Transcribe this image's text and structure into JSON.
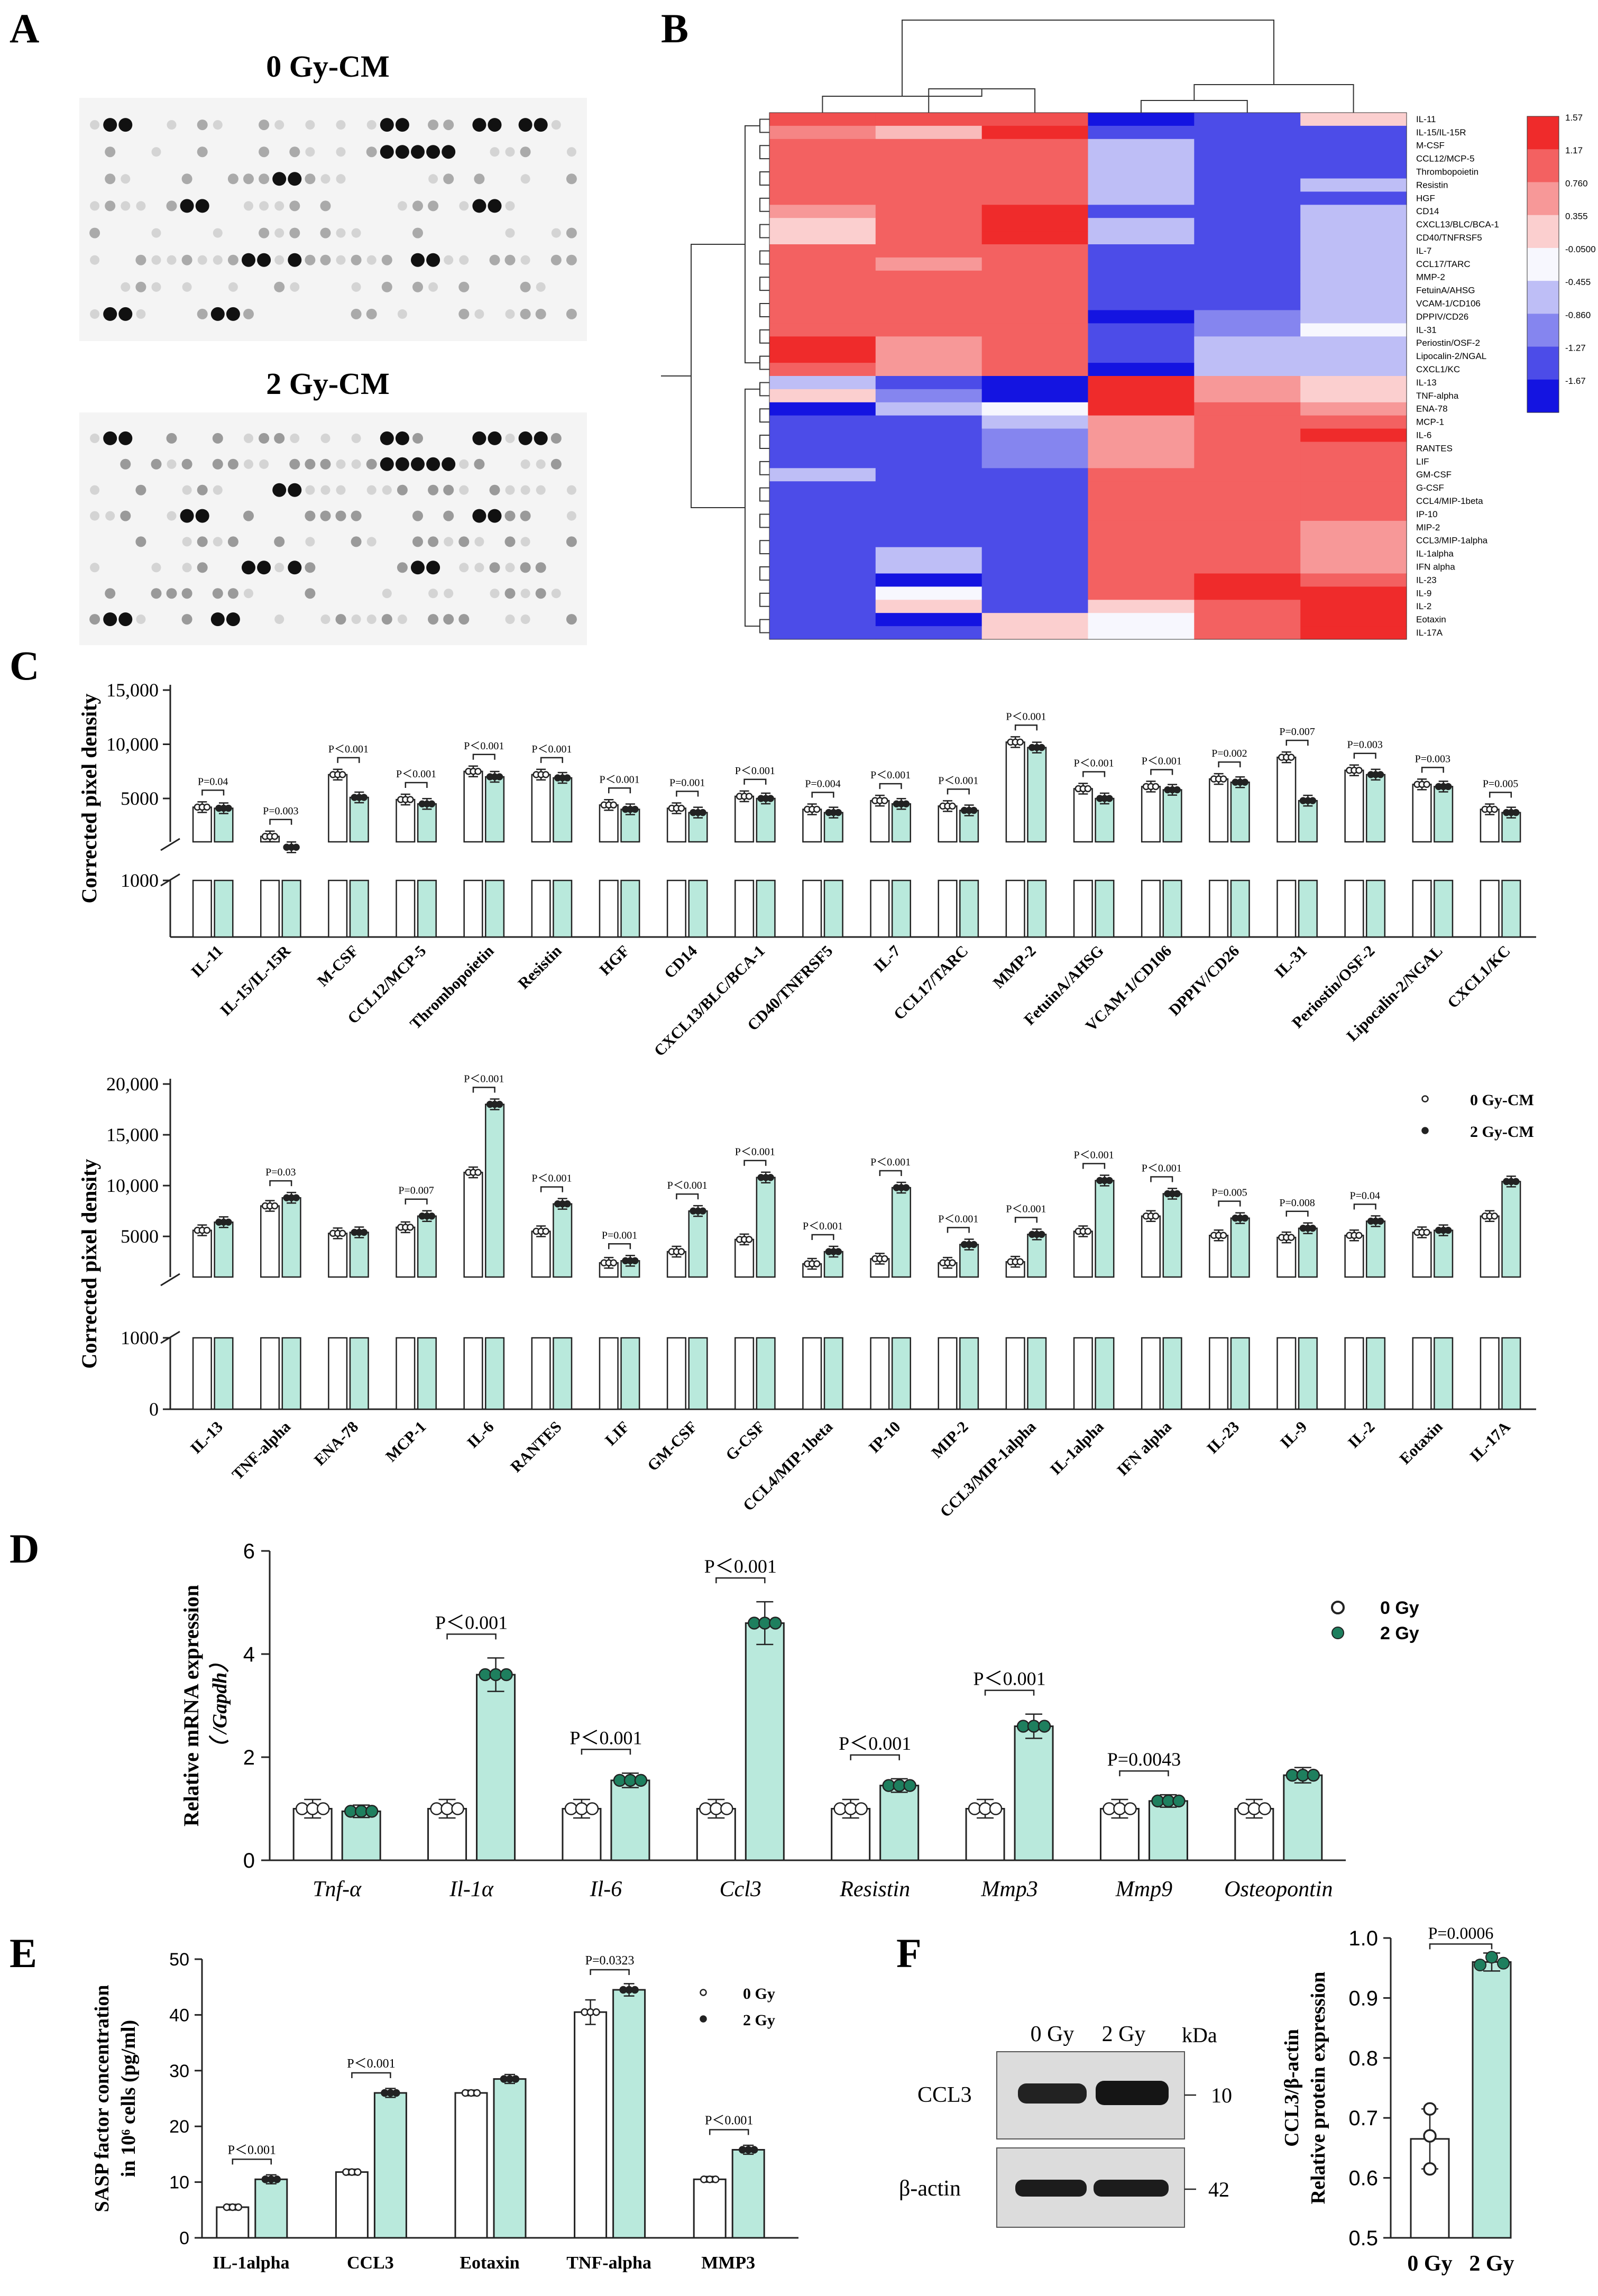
{
  "panels": {
    "A": "A",
    "B": "B",
    "C": "C",
    "D": "D",
    "E": "E",
    "F": "F"
  },
  "colors": {
    "green": "#b9e9dc",
    "dark_green": "#1e7f5e",
    "heat_red": "#ee2a2a",
    "heat_blue": "#1c1cdc"
  },
  "panel_a": {
    "title_top": "0 Gy-CM",
    "title_bottom": "2 Gy-CM"
  },
  "chart_data": [
    {
      "panel": "B",
      "type": "heatmap",
      "rows": [
        "IL-11",
        "IL-15/IL-15R",
        "M-CSF",
        "CCL12/MCP-5",
        "Thrombopoietin",
        "Resistin",
        "HGF",
        "CD14",
        "CXCL13/BLC/BCA-1",
        "CD40/TNFRSF5",
        "IL-7",
        "CCL17/TARC",
        "MMP-2",
        "FetuinA/AHSG",
        "VCAM-1/CD106",
        "DPPIV/CD26",
        "IL-31",
        "Periostin/OSF-2",
        "Lipocalin-2/NGAL",
        "CXCL1/KC",
        "IL-13",
        "TNF-alpha",
        "ENA-78",
        "MCP-1",
        "IL-6",
        "RANTES",
        "LIF",
        "GM-CSF",
        "G-CSF",
        "CCL4/MIP-1beta",
        "IP-10",
        "MIP-2",
        "CCL3/MIP-1alpha",
        "IL-1alpha",
        "IFN alpha",
        "IL-23",
        "IL-9",
        "IL-2",
        "Eotaxin",
        "IL-17A"
      ],
      "columns": 6,
      "values": [
        [
          1.3,
          1.3,
          1.3,
          -1.67,
          -1.27,
          0.355
        ],
        [
          0.9,
          0.5,
          1.57,
          -1.27,
          -1.27,
          -1.27
        ],
        [
          1.17,
          1.17,
          1.17,
          -0.455,
          -1.27,
          -1.27
        ],
        [
          1.17,
          1.17,
          1.17,
          -0.455,
          -1.27,
          -1.27
        ],
        [
          1.17,
          1.17,
          1.17,
          -0.455,
          -1.27,
          -1.27
        ],
        [
          1.17,
          1.17,
          1.17,
          -0.455,
          -1.27,
          -0.455
        ],
        [
          1.17,
          1.17,
          1.17,
          -0.455,
          -1.27,
          -1.27
        ],
        [
          0.76,
          1.17,
          1.57,
          -1.27,
          -1.27,
          -0.455
        ],
        [
          0.355,
          1.17,
          1.57,
          -0.455,
          -1.27,
          -0.455
        ],
        [
          0.355,
          1.17,
          1.57,
          -0.455,
          -1.27,
          -0.455
        ],
        [
          1.17,
          1.17,
          1.17,
          -1.27,
          -1.27,
          -0.455
        ],
        [
          1.17,
          0.76,
          1.17,
          -1.27,
          -1.27,
          -0.455
        ],
        [
          1.17,
          1.17,
          1.17,
          -1.27,
          -1.27,
          -0.455
        ],
        [
          1.17,
          1.17,
          1.17,
          -1.27,
          -1.27,
          -0.455
        ],
        [
          1.17,
          1.17,
          1.17,
          -1.27,
          -1.27,
          -0.455
        ],
        [
          1.17,
          1.17,
          1.17,
          -1.67,
          -0.86,
          -0.455
        ],
        [
          1.17,
          1.17,
          1.17,
          -1.27,
          -0.86,
          -0.05
        ],
        [
          1.57,
          0.76,
          1.17,
          -1.27,
          -0.455,
          -0.455
        ],
        [
          1.57,
          0.76,
          1.17,
          -1.27,
          -0.455,
          -0.455
        ],
        [
          1.17,
          0.76,
          1.17,
          -1.67,
          -0.455,
          -0.455
        ],
        [
          -0.455,
          -1.27,
          -1.67,
          1.57,
          0.76,
          0.355
        ],
        [
          0.355,
          -0.86,
          -1.67,
          1.57,
          0.76,
          0.355
        ],
        [
          -1.67,
          -0.455,
          -0.05,
          1.57,
          1.17,
          0.76
        ],
        [
          -1.27,
          -1.27,
          -0.455,
          0.76,
          1.17,
          1.17
        ],
        [
          -1.27,
          -1.27,
          -0.86,
          0.76,
          1.17,
          1.57
        ],
        [
          -1.27,
          -1.27,
          -0.86,
          0.76,
          1.17,
          1.17
        ],
        [
          -1.27,
          -1.27,
          -0.86,
          0.76,
          1.17,
          1.17
        ],
        [
          -0.455,
          -1.27,
          -1.27,
          1.17,
          1.17,
          1.17
        ],
        [
          -1.27,
          -1.27,
          -1.27,
          1.17,
          1.17,
          1.17
        ],
        [
          -1.27,
          -1.27,
          -1.27,
          1.17,
          1.17,
          1.17
        ],
        [
          -1.27,
          -1.27,
          -1.27,
          1.17,
          1.17,
          1.17
        ],
        [
          -1.27,
          -1.27,
          -1.27,
          1.17,
          1.17,
          0.76
        ],
        [
          -1.27,
          -1.27,
          -1.27,
          1.17,
          1.17,
          0.76
        ],
        [
          -1.27,
          -0.455,
          -1.27,
          1.17,
          1.17,
          0.76
        ],
        [
          -1.27,
          -0.455,
          -1.27,
          1.17,
          1.17,
          0.76
        ],
        [
          -1.27,
          -1.67,
          -1.27,
          1.17,
          1.57,
          1.17
        ],
        [
          -1.27,
          -0.05,
          -1.27,
          1.17,
          1.57,
          1.57
        ],
        [
          -1.27,
          0.355,
          -1.27,
          0.355,
          1.17,
          1.57
        ],
        [
          -1.27,
          -1.67,
          0.355,
          -0.05,
          1.17,
          1.57
        ],
        [
          -1.27,
          -1.27,
          0.355,
          -0.05,
          1.17,
          1.57
        ]
      ],
      "legend_ticks": [
        "1.57",
        "1.17",
        "0.760",
        "0.355",
        "-0.0500",
        "-0.455",
        "-0.860",
        "-1.27",
        "-1.67"
      ]
    },
    {
      "panel": "C-top",
      "type": "bar",
      "ylabel": "Corrected pixel density",
      "yticks": [
        "15,000",
        "10,000",
        "5000",
        "1000"
      ],
      "categories": [
        "IL-11",
        "IL-15/IL-15R",
        "M-CSF",
        "CCL12/MCP-5",
        "Thrombopoietin",
        "Resistin",
        "HGF",
        "CD14",
        "CXCL13/BLC/BCA-1",
        "CD40/TNFRSF5",
        "IL-7",
        "CCL17/TARC",
        "MMP-2",
        "FetuinA/AHSG",
        "VCAM-1/CD106",
        "DPPIV/CD26",
        "IL-31",
        "Periostin/OSF-2",
        "Lipocalin-2/NGAL",
        "CXCL1/KC"
      ],
      "series": [
        {
          "name": "0 Gy-CM",
          "values": [
            4200,
            1500,
            7200,
            4900,
            7500,
            7200,
            4400,
            4100,
            5200,
            4000,
            4800,
            4300,
            10200,
            5900,
            6100,
            6800,
            8800,
            7600,
            6300,
            4000
          ]
        },
        {
          "name": "2 Gy-CM",
          "values": [
            4100,
            500,
            5100,
            4500,
            7000,
            6900,
            4000,
            3700,
            5000,
            3700,
            4500,
            3900,
            9700,
            5000,
            5800,
            6500,
            4800,
            7200,
            6100,
            3700
          ]
        }
      ],
      "pvalues": [
        "P=0.04",
        "P=0.003",
        "P＜0.001",
        "P＜0.001",
        "P＜0.001",
        "P＜0.001",
        "P＜0.001",
        "P=0.001",
        "P＜0.001",
        "P=0.004",
        "P＜0.001",
        "P＜0.001",
        "P＜0.001",
        "P＜0.001",
        "P＜0.001",
        "P=0.002",
        "P=0.007",
        "P=0.003",
        "P=0.003",
        "P=0.005"
      ]
    },
    {
      "panel": "C-bottom",
      "type": "bar",
      "ylabel": "Corrected pixel density",
      "yticks": [
        "20,000",
        "15,000",
        "10,000",
        "5000",
        "1000",
        "0"
      ],
      "categories": [
        "IL-13",
        "TNF-alpha",
        "ENA-78",
        "MCP-1",
        "IL-6",
        "RANTES",
        "LIF",
        "GM-CSF",
        "G-CSF",
        "CCL4/MIP-1beta",
        "IP-10",
        "MIP-2",
        "CCL3/MIP-1alpha",
        "IL-1alpha",
        "IFN alpha",
        "IL-23",
        "IL-9",
        "IL-2",
        "Eotaxin",
        "IL-17A"
      ],
      "series": [
        {
          "name": "0 Gy-CM",
          "values": [
            5600,
            8000,
            5300,
            5900,
            11300,
            5500,
            2400,
            3500,
            4700,
            2300,
            2800,
            2400,
            2500,
            5500,
            7000,
            5100,
            4900,
            5100,
            5400,
            7000
          ]
        },
        {
          "name": "2 Gy-CM",
          "values": [
            6400,
            8800,
            5400,
            7000,
            18000,
            8200,
            2600,
            7500,
            10800,
            3500,
            9800,
            4200,
            5200,
            10500,
            9200,
            6800,
            5800,
            6500,
            5600,
            10400
          ]
        }
      ],
      "pvalues": [
        "",
        "P=0.03",
        "",
        "P=0.007",
        "P＜0.001",
        "P＜0.001",
        "P=0.001",
        "P＜0.001",
        "P＜0.001",
        "P＜0.001",
        "P＜0.001",
        "P＜0.001",
        "P＜0.001",
        "P＜0.001",
        "P＜0.001",
        "P=0.005",
        "P=0.008",
        "P=0.04",
        "",
        ""
      ],
      "legend": [
        "0 Gy-CM",
        "2 Gy-CM"
      ]
    },
    {
      "panel": "D",
      "type": "bar",
      "ylabel": "Relative mRNA expression",
      "ylabel2": "（ /Gapdh）",
      "ylim": [
        0,
        6
      ],
      "yticks": [
        "0",
        "2",
        "4",
        "6"
      ],
      "categories": [
        "Tnf-α",
        "Il-1α",
        "Il-6",
        "Ccl3",
        "Resistin",
        "Mmp3",
        "Mmp9",
        "Osteopontin"
      ],
      "series": [
        {
          "name": "0 Gy",
          "values": [
            1.0,
            1.0,
            1.0,
            1.0,
            1.0,
            1.0,
            1.0,
            1.0
          ]
        },
        {
          "name": "2 Gy",
          "values": [
            0.95,
            3.6,
            1.55,
            4.6,
            1.45,
            2.6,
            1.15,
            1.65
          ]
        }
      ],
      "pvalues": [
        "",
        "P＜0.001",
        "P＜0.001",
        "P＜0.001",
        "P＜0.001",
        "P＜0.001",
        "P=0.0043",
        ""
      ]
    },
    {
      "panel": "E",
      "type": "bar",
      "ylabel": "SASP factor concentration",
      "ylabel2": "in 10⁶ cells (pg/ml)",
      "ylim": [
        0,
        50
      ],
      "yticks": [
        "0",
        "10",
        "20",
        "30",
        "40",
        "50"
      ],
      "categories": [
        "IL-1alpha",
        "CCL3",
        "Eotaxin",
        "TNF-alpha",
        "MMP3"
      ],
      "series": [
        {
          "name": "0 Gy",
          "values": [
            5.5,
            11.8,
            26,
            40.5,
            10.5
          ]
        },
        {
          "name": "2 Gy",
          "values": [
            10.5,
            26,
            28.5,
            44.5,
            15.8
          ]
        }
      ],
      "pvalues": [
        "P＜0.001",
        "P＜0.001",
        "",
        "P=0.0323",
        "P＜0.001"
      ]
    },
    {
      "panel": "F",
      "type": "bar",
      "ylabel": "CCL3/β-actin",
      "ylabel2": "Relative protein expression",
      "ylim": [
        0.5,
        1.0
      ],
      "yticks": [
        "0.5",
        "0.6",
        "0.7",
        "0.8",
        "0.9",
        "1.0"
      ],
      "categories": [
        "0 Gy",
        "2 Gy"
      ],
      "values": [
        0.665,
        0.96
      ],
      "pvalue": "P=0.0006"
    }
  ],
  "panel_f_blot": {
    "lane1": "0 Gy",
    "lane2": "2 Gy",
    "unit": "kDa",
    "row1": "CCL3",
    "row1_kda": "10",
    "row2": "β-actin",
    "row2_kda": "42"
  }
}
